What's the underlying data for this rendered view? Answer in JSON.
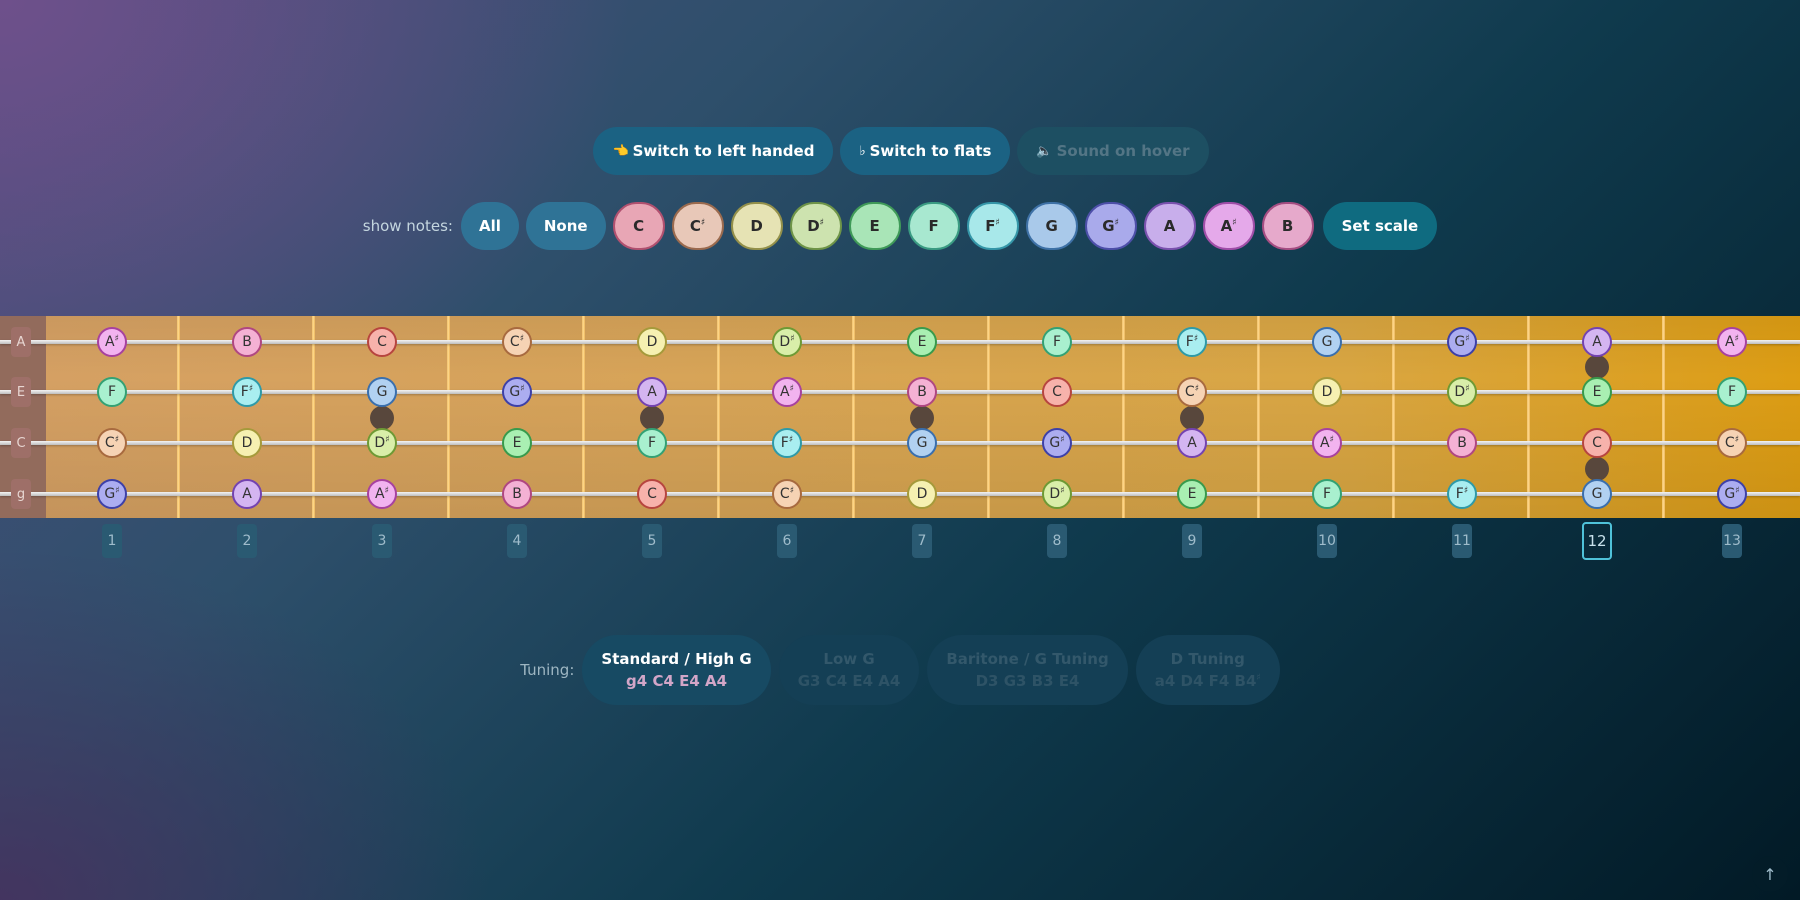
{
  "top_buttons": [
    {
      "icon": "👈",
      "label": "Switch to left handed",
      "state": "dark"
    },
    {
      "icon": "♭",
      "label": "Switch to flats",
      "state": "dark"
    },
    {
      "icon": "🔈",
      "label": "Sound on hover",
      "state": "muted"
    }
  ],
  "show_notes": {
    "label": "show notes:",
    "all_label": "All",
    "none_label": "None",
    "set_scale_label": "Set scale",
    "notes": [
      {
        "name": "C",
        "bg": "#e8a6b5",
        "border": "#b0506f"
      },
      {
        "name": "C#",
        "bg": "#e8c8b8",
        "border": "#9a6a4e"
      },
      {
        "name": "D",
        "bg": "#e6e3b4",
        "border": "#93904a"
      },
      {
        "name": "D#",
        "bg": "#cde3af",
        "border": "#6e9448"
      },
      {
        "name": "E",
        "bg": "#a9e5b7",
        "border": "#3f9a58"
      },
      {
        "name": "F",
        "bg": "#a8e8d0",
        "border": "#3a9b82"
      },
      {
        "name": "F#",
        "bg": "#a8e8ea",
        "border": "#3596a8"
      },
      {
        "name": "G",
        "bg": "#a9c9ea",
        "border": "#3e71a6"
      },
      {
        "name": "G#",
        "bg": "#a9aaeb",
        "border": "#4d4fa8"
      },
      {
        "name": "A",
        "bg": "#c8aeeb",
        "border": "#7a51ae"
      },
      {
        "name": "A#",
        "bg": "#e5a9ea",
        "border": "#a04ea8"
      },
      {
        "name": "B",
        "bg": "#e6a9cb",
        "border": "#a54d82"
      }
    ]
  },
  "fretboard": {
    "strings": [
      "A",
      "E",
      "C",
      "g"
    ],
    "frets": [
      "1",
      "2",
      "3",
      "4",
      "5",
      "6",
      "7",
      "8",
      "9",
      "10",
      "11",
      "12",
      "13"
    ],
    "active_fret": "12",
    "notes": [
      [
        "A#",
        "B",
        "C",
        "C#",
        "D",
        "D#",
        "E",
        "F",
        "F#",
        "G",
        "G#",
        "A",
        "A#"
      ],
      [
        "F",
        "F#",
        "G",
        "G#",
        "A",
        "A#",
        "B",
        "C",
        "C#",
        "D",
        "D#",
        "E",
        "F"
      ],
      [
        "C#",
        "D",
        "D#",
        "E",
        "F",
        "F#",
        "G",
        "G#",
        "A",
        "A#",
        "B",
        "C",
        "C#"
      ],
      [
        "G#",
        "A",
        "A#",
        "B",
        "C",
        "C#",
        "D",
        "D#",
        "E",
        "F",
        "F#",
        "G",
        "G#"
      ]
    ],
    "note_colors": {
      "C": {
        "bg": "#f7b2ab",
        "border": "#b7453f"
      },
      "C#": {
        "bg": "#f6d3b4",
        "border": "#a86a3f"
      },
      "D": {
        "bg": "#f6f0b1",
        "border": "#a59a3b"
      },
      "D#": {
        "bg": "#d9eea9",
        "border": "#6e9a35"
      },
      "E": {
        "bg": "#a9efb2",
        "border": "#389a4c"
      },
      "F": {
        "bg": "#a9f0cf",
        "border": "#33a174"
      },
      "F#": {
        "bg": "#a9eef0",
        "border": "#2e9aa8"
      },
      "G": {
        "bg": "#b1d1f1",
        "border": "#3a6fad"
      },
      "G#": {
        "bg": "#acadf0",
        "border": "#3d40a8"
      },
      "A": {
        "bg": "#d4b5f1",
        "border": "#7443b0"
      },
      "A#": {
        "bg": "#f2b3ef",
        "border": "#a7419f"
      },
      "B": {
        "bg": "#f4b1d4",
        "border": "#b04781"
      }
    }
  },
  "tuning": {
    "label": "Tuning:",
    "options": [
      {
        "name": "Standard / High G",
        "notes": "g4 C4 E4 A4",
        "active": true
      },
      {
        "name": "Low G",
        "notes": "G3 C4 E4 A4",
        "active": false
      },
      {
        "name": "Baritone / G Tuning",
        "notes": "D3 G3 B3 E4",
        "active": false
      },
      {
        "name": "D Tuning",
        "notes": "a4 D4 F#4 B4",
        "active": false
      }
    ]
  },
  "scroll_top_icon": "↑"
}
